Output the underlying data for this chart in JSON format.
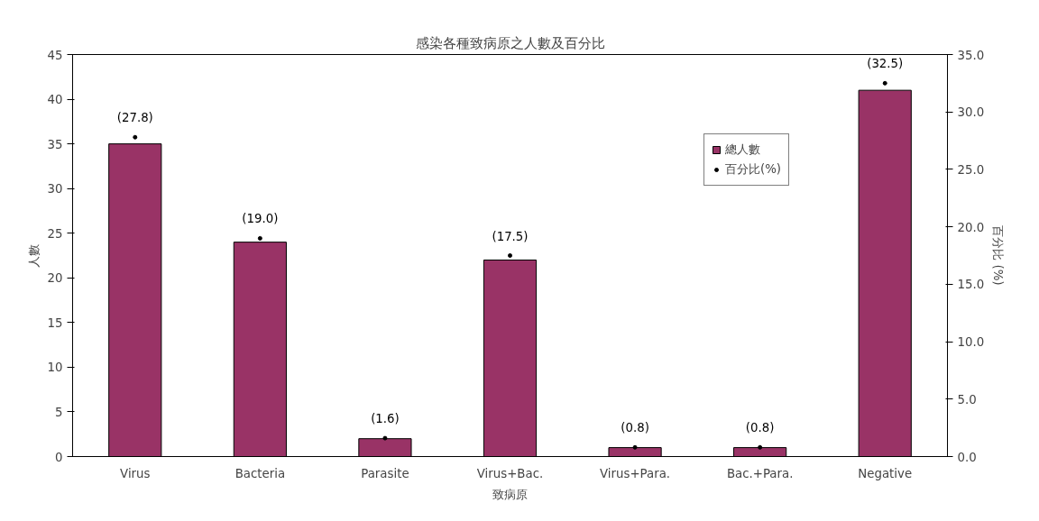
{
  "chart_data": {
    "type": "bar",
    "title": "感染各種致病原之人數及百分比",
    "xlabel": "致病原",
    "ylabel": "人數",
    "y2label": "百分比 (%)",
    "categories": [
      "Virus",
      "Bacteria",
      "Parasite",
      "Virus+Bac.",
      "Virus+Para.",
      "Bac.+Para.",
      "Negative"
    ],
    "series": [
      {
        "name": "總人數",
        "color": "#993366",
        "values": [
          35,
          24,
          2,
          22,
          1,
          1,
          41
        ]
      },
      {
        "name": "百分比(%)",
        "type": "scatter",
        "color": "#000000",
        "marker": "circle",
        "axis": "y2",
        "values": [
          27.8,
          19.0,
          1.6,
          17.5,
          0.8,
          0.8,
          32.5
        ],
        "value_labels": [
          "(27.8)",
          "(19.0)",
          "(1.6)",
          "(17.5)",
          "(0.8)",
          "(0.8)",
          "(32.5)"
        ]
      }
    ],
    "ylim": [
      0,
      45
    ],
    "yticks": [
      0,
      5,
      10,
      15,
      20,
      25,
      30,
      35,
      40,
      45
    ],
    "y2lim": [
      0,
      35
    ],
    "y2ticks": [
      {
        "value": 0,
        "label": "0.0"
      },
      {
        "value": 5,
        "label": "5.0"
      },
      {
        "value": 10,
        "label": "10.0"
      },
      {
        "value": 15,
        "label": "15.0"
      },
      {
        "value": 20,
        "label": "20.0"
      },
      {
        "value": 25,
        "label": "25.0"
      },
      {
        "value": 30,
        "label": "30.0"
      },
      {
        "value": 35,
        "label": "35.0"
      }
    ],
    "legend": "top right",
    "grid": false
  }
}
